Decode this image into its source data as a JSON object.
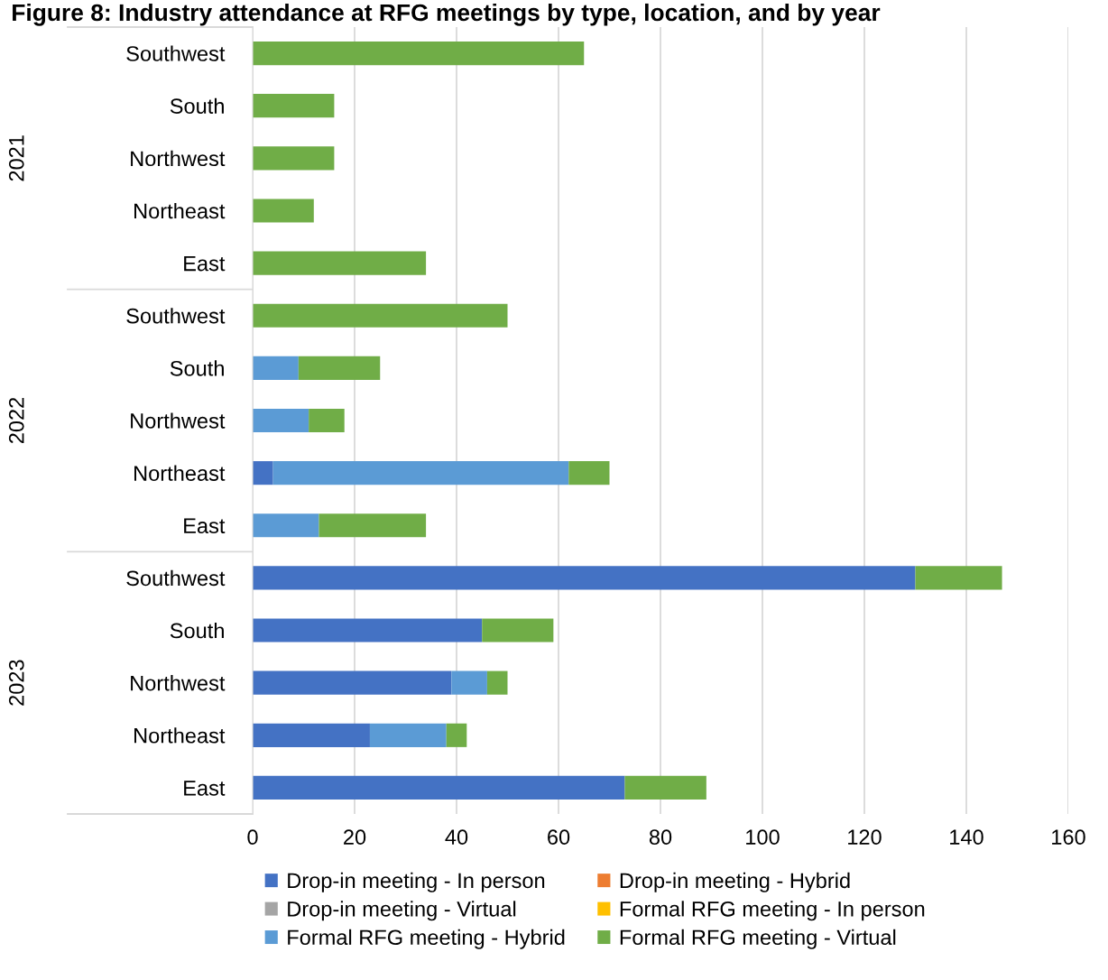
{
  "chart_data": {
    "type": "bar",
    "orientation": "horizontal",
    "stacked": true,
    "title": "Figure 8: Industry attendance at RFG meetings by type, location, and by year",
    "categories": [
      "Southwest",
      "South",
      "Northwest",
      "Northeast",
      "East",
      "Southwest",
      "South",
      "Northwest",
      "Northeast",
      "East",
      "Southwest",
      "South",
      "Northwest",
      "Northeast",
      "East"
    ],
    "annotations": [
      "2021",
      "2022",
      "2023"
    ],
    "series": [
      {
        "name": "Drop-in meeting - In person",
        "color": "#4472c4",
        "values": [
          0,
          0,
          0,
          0,
          0,
          0,
          0,
          0,
          4,
          0,
          130,
          45,
          39,
          23,
          73
        ]
      },
      {
        "name": "Drop-in meeting - Hybrid",
        "color": "#ed7d31",
        "values": [
          0,
          0,
          0,
          0,
          0,
          0,
          0,
          0,
          0,
          0,
          0,
          0,
          0,
          0,
          0
        ]
      },
      {
        "name": "Drop-in meeting - Virtual",
        "color": "#a5a5a5",
        "values": [
          0,
          0,
          0,
          0,
          0,
          0,
          0,
          0,
          0,
          0,
          0,
          0,
          0,
          0,
          0
        ]
      },
      {
        "name": "Formal RFG meeting - In person",
        "color": "#ffc000",
        "values": [
          0,
          0,
          0,
          0,
          0,
          0,
          0,
          0,
          0,
          0,
          0,
          0,
          0,
          0,
          0
        ]
      },
      {
        "name": "Formal RFG meeting - Hybrid",
        "color": "#5b9bd5",
        "values": [
          0,
          0,
          0,
          0,
          0,
          0,
          9,
          11,
          58,
          13,
          0,
          0,
          7,
          15,
          0
        ]
      },
      {
        "name": "Formal RFG meeting - Virtual",
        "color": "#70ad47",
        "values": [
          65,
          16,
          16,
          12,
          34,
          50,
          16,
          7,
          8,
          21,
          17,
          14,
          4,
          4,
          16
        ]
      }
    ],
    "xlim": [
      0,
      160
    ],
    "xticks": [
      0,
      20,
      40,
      60,
      80,
      100,
      120,
      140,
      160
    ],
    "grid": "x",
    "legend": "bottom"
  }
}
